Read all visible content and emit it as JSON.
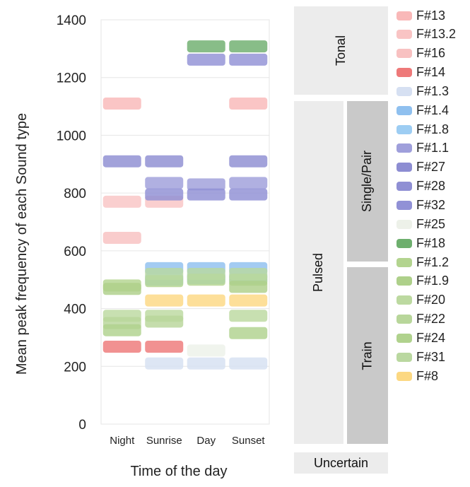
{
  "chart_data": {
    "type": "bar",
    "xlabel": "Time of the day",
    "ylabel": "Mean peak frequency of each Sound type",
    "ylim": [
      0,
      1400
    ],
    "yticks": [
      0,
      200,
      400,
      600,
      800,
      1000,
      1200,
      1400
    ],
    "categories": [
      "Night",
      "Sunrise",
      "Day",
      "Sunset"
    ],
    "series": [
      {
        "name": "F#13",
        "color": "#f9b8b8",
        "points": [
          {
            "x": "Night",
            "y": 1110
          },
          {
            "x": "Sunset",
            "y": 1110
          }
        ]
      },
      {
        "name": "F#13.2",
        "color": "#f9c4c4",
        "points": [
          {
            "x": "Night",
            "y": 770
          },
          {
            "x": "Sunrise",
            "y": 770
          }
        ]
      },
      {
        "name": "F#16",
        "color": "#f8c1c1",
        "points": [
          {
            "x": "Night",
            "y": 645
          }
        ]
      },
      {
        "name": "F#14",
        "color": "#ee7979",
        "points": [
          {
            "x": "Night",
            "y": 268
          },
          {
            "x": "Sunrise",
            "y": 268
          }
        ]
      },
      {
        "name": "F#1.3",
        "color": "#d6e0f2",
        "points": [
          {
            "x": "Sunrise",
            "y": 210
          },
          {
            "x": "Day",
            "y": 210
          },
          {
            "x": "Sunset",
            "y": 210
          }
        ]
      },
      {
        "name": "F#1.4",
        "color": "#8fc0ef",
        "points": [
          {
            "x": "Sunrise",
            "y": 540
          },
          {
            "x": "Day",
            "y": 540
          },
          {
            "x": "Sunset",
            "y": 540
          }
        ]
      },
      {
        "name": "F#1.8",
        "color": "#9dcdf3",
        "points": [
          {
            "x": "Sunrise",
            "y": 500
          },
          {
            "x": "Day",
            "y": 505
          },
          {
            "x": "Sunset",
            "y": 505
          }
        ]
      },
      {
        "name": "F#1.1",
        "color": "#9f9fdb",
        "points": [
          {
            "x": "Sunrise",
            "y": 835
          },
          {
            "x": "Day",
            "y": 830
          },
          {
            "x": "Sunset",
            "y": 835
          }
        ]
      },
      {
        "name": "F#27",
        "color": "#8d8dd2",
        "points": [
          {
            "x": "Night",
            "y": 910
          },
          {
            "x": "Sunrise",
            "y": 910
          },
          {
            "x": "Sunset",
            "y": 910
          }
        ]
      },
      {
        "name": "F#28",
        "color": "#8f8fd4",
        "points": [
          {
            "x": "Sunrise",
            "y": 795
          },
          {
            "x": "Day",
            "y": 795
          },
          {
            "x": "Sunset",
            "y": 795
          }
        ]
      },
      {
        "name": "F#32",
        "color": "#9191d6",
        "points": [
          {
            "x": "Day",
            "y": 1262
          },
          {
            "x": "Sunset",
            "y": 1262
          }
        ]
      },
      {
        "name": "F#25",
        "color": "#edf1e9",
        "points": [
          {
            "x": "Day",
            "y": 255
          }
        ]
      },
      {
        "name": "F#18",
        "color": "#6eaf6e",
        "points": [
          {
            "x": "Day",
            "y": 1308
          },
          {
            "x": "Sunset",
            "y": 1308
          }
        ]
      },
      {
        "name": "F#1.2",
        "color": "#b3d48f",
        "points": [
          {
            "x": "Night",
            "y": 480
          },
          {
            "x": "Sunrise",
            "y": 495
          },
          {
            "x": "Day",
            "y": 500
          },
          {
            "x": "Sunset",
            "y": 500
          }
        ]
      },
      {
        "name": "F#1.9",
        "color": "#aed08a",
        "points": [
          {
            "x": "Night",
            "y": 468
          },
          {
            "x": "Sunset",
            "y": 475
          }
        ]
      },
      {
        "name": "F#20",
        "color": "#bcd9a0",
        "points": [
          {
            "x": "Night",
            "y": 375
          },
          {
            "x": "Sunrise",
            "y": 375
          },
          {
            "x": "Sunset",
            "y": 375
          }
        ]
      },
      {
        "name": "F#22",
        "color": "#b8d69a",
        "points": [
          {
            "x": "Night",
            "y": 350
          },
          {
            "x": "Sunrise",
            "y": 355
          }
        ]
      },
      {
        "name": "F#24",
        "color": "#b0d28d",
        "points": [
          {
            "x": "Night",
            "y": 325
          },
          {
            "x": "Sunset",
            "y": 315
          }
        ]
      },
      {
        "name": "F#31",
        "color": "#bad8a0",
        "points": [
          {
            "x": "Sunrise",
            "y": 520
          },
          {
            "x": "Day",
            "y": 520
          },
          {
            "x": "Sunset",
            "y": 520
          }
        ]
      },
      {
        "name": "F#8",
        "color": "#fcd882",
        "points": [
          {
            "x": "Sunrise",
            "y": 428
          },
          {
            "x": "Day",
            "y": 428
          },
          {
            "x": "Sunset",
            "y": 428
          }
        ]
      }
    ]
  },
  "legend": {
    "groups": {
      "tonal": "Tonal",
      "pulsed": "Pulsed",
      "single_pair": "Single/Pair",
      "train": "Train",
      "uncertain": "Uncertain"
    },
    "group_fill": "#ececec",
    "subgroup_fill": "#c9c9c9"
  }
}
